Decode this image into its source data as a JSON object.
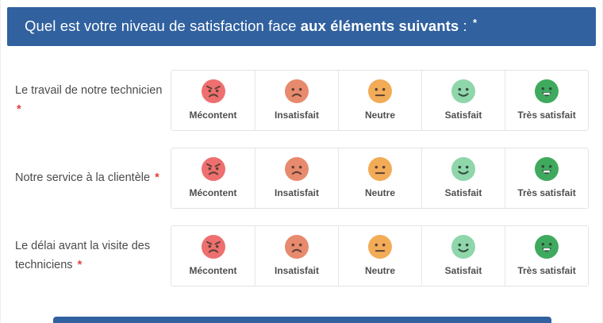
{
  "header": {
    "title_normal": "Quel est votre niveau de satisfaction face ",
    "title_bold": "aux éléments suivants",
    "title_suffix": " : ",
    "required_mark": "*",
    "bg_color": "#31619f"
  },
  "questions": [
    {
      "label": "Le travail de notre technicien",
      "required": "*"
    },
    {
      "label": "Notre service à la clientèle",
      "required": "*"
    },
    {
      "label": "Le délai avant la visite des techniciens",
      "required": "*"
    }
  ],
  "options": [
    {
      "id": "mecontent",
      "label": "Mécontent",
      "face": "angry",
      "color": "#ee6f6f"
    },
    {
      "id": "insatisfait",
      "label": "Insatisfait",
      "face": "sad",
      "color": "#e78a6d"
    },
    {
      "id": "neutre",
      "label": "Neutre",
      "face": "neutral",
      "color": "#f2ac57"
    },
    {
      "id": "satisfait",
      "label": "Satisfait",
      "face": "smile",
      "color": "#8fd6aa"
    },
    {
      "id": "tres-satisfait",
      "label": "Très satisfait",
      "face": "grin",
      "color": "#3faa5e"
    }
  ],
  "colors": {
    "required_red": "#e53e3e",
    "cell_border": "#e7e7e7",
    "label_text": "#4a4a4a"
  }
}
